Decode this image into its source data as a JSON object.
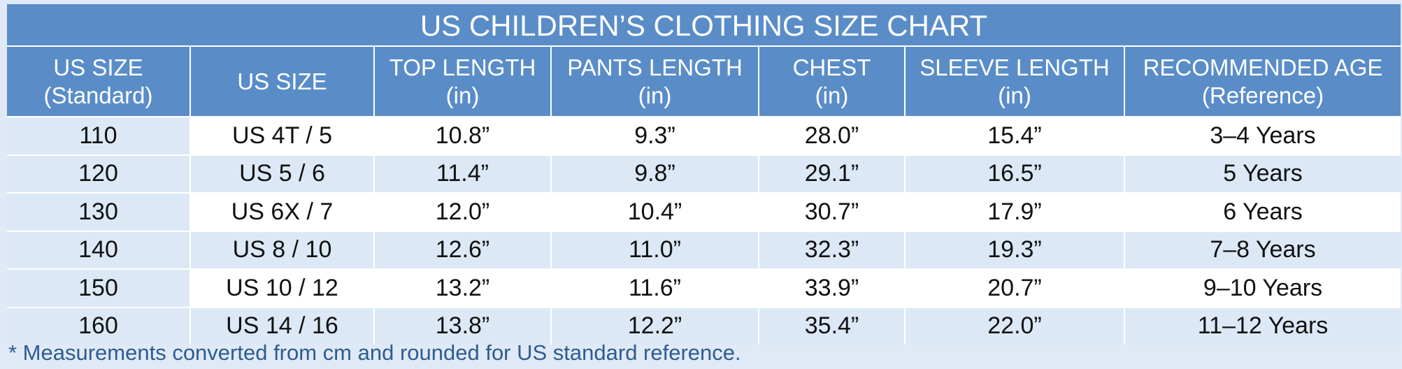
{
  "title": "US CHILDREN’S CLOTHING SIZE CHART",
  "table": {
    "header": [
      [
        "US SIZE",
        "(Standard)"
      ],
      [
        "US SIZE"
      ],
      [
        "TOP LENGTH",
        "(in)"
      ],
      [
        "PANTS LENGTH",
        "(in)"
      ],
      [
        "CHEST",
        "(in)"
      ],
      [
        "SLEEVE LENGTH",
        "(in)"
      ],
      [
        "RECOMMENDED AGE",
        "(Reference)"
      ]
    ],
    "rows": [
      [
        "110",
        "US 4T / 5",
        "10.8”",
        "9.3”",
        "28.0”",
        "15.4”",
        "3–4 Years"
      ],
      [
        "120",
        "US 5 / 6",
        "11.4”",
        "9.8”",
        "29.1”",
        "16.5”",
        "5 Years"
      ],
      [
        "130",
        "US 6X / 7",
        "12.0”",
        "10.4”",
        "30.7”",
        "17.9”",
        "6 Years"
      ],
      [
        "140",
        "US 8 / 10",
        "12.6”",
        "11.0”",
        "32.3”",
        "19.3”",
        "7–8 Years"
      ],
      [
        "150",
        "US 10 / 12",
        "13.2”",
        "11.6”",
        "33.9”",
        "20.7”",
        "9–10 Years"
      ],
      [
        "160",
        "US 14 / 16",
        "13.8”",
        "12.2”",
        "35.4”",
        "22.0”",
        "11–12 Years"
      ]
    ]
  },
  "footnote": "* Measurements converted from cm and rounded for US standard reference."
}
